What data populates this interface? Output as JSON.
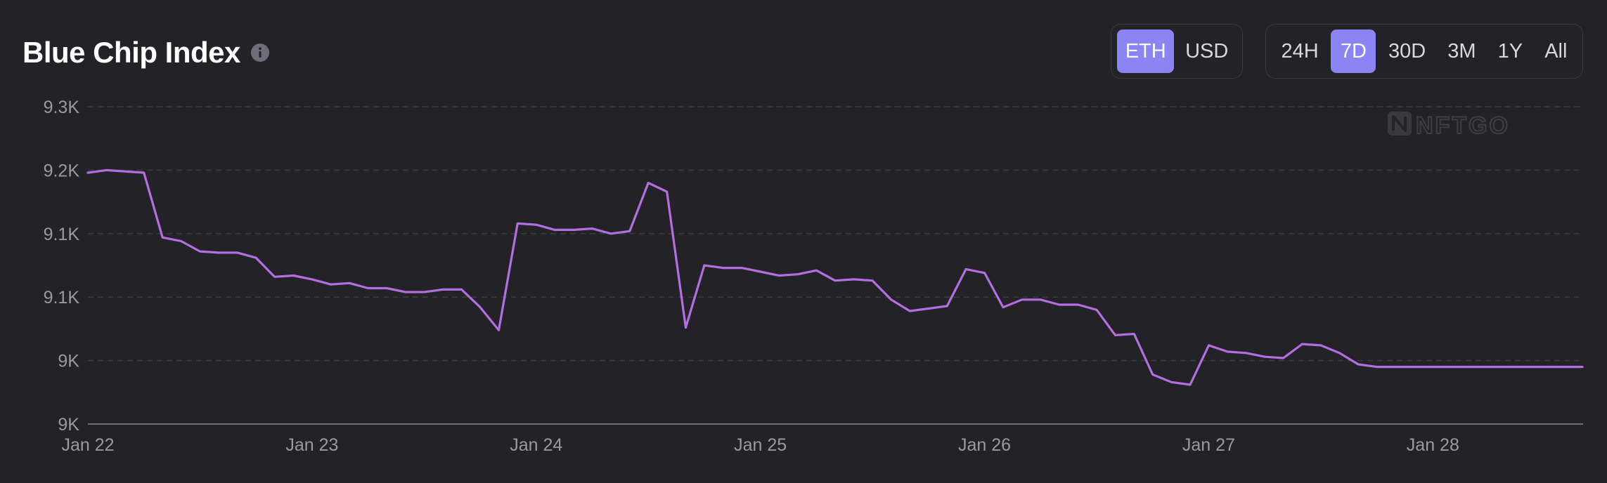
{
  "header": {
    "title": "Blue Chip Index",
    "info_icon": "info-icon"
  },
  "currency_toggle": {
    "options": [
      "ETH",
      "USD"
    ],
    "selected": "ETH"
  },
  "range_toggle": {
    "options": [
      "24H",
      "7D",
      "30D",
      "3M",
      "1Y",
      "All"
    ],
    "selected": "7D"
  },
  "colors": {
    "background": "#232227",
    "line": "#b36ee0",
    "accent": "#8a84f4",
    "grid": "#3d3c42",
    "axis_text": "#9a99a0"
  },
  "chart_data": {
    "type": "line",
    "title": "Blue Chip Index",
    "xlabel": "",
    "ylabel": "",
    "watermark": "NFTGO",
    "grid": true,
    "x_ticks": [
      "Jan 22",
      "Jan 23",
      "Jan 24",
      "Jan 25",
      "Jan 26",
      "Jan 27",
      "Jan 28"
    ],
    "y_ticks": [
      "9.3K",
      "9.2K",
      "9.1K",
      "9.1K",
      "9K",
      "9K"
    ],
    "y_tick_values": [
      9300,
      9250,
      9200,
      9150,
      9100,
      9050
    ],
    "ylim": [
      9050,
      9300
    ],
    "xlim": [
      0,
      6.67
    ],
    "x_unit": "days since Jan 22",
    "series": [
      {
        "name": "",
        "x": [
          0,
          0.083,
          0.25,
          0.333,
          0.417,
          0.5,
          0.583,
          0.667,
          0.75,
          0.833,
          0.917,
          1,
          1.083,
          1.167,
          1.25,
          1.333,
          1.417,
          1.5,
          1.583,
          1.667,
          1.75,
          1.833,
          1.917,
          2,
          2.083,
          2.167,
          2.25,
          2.333,
          2.417,
          2.5,
          2.583,
          2.667,
          2.75,
          2.833,
          2.917,
          3,
          3.083,
          3.167,
          3.25,
          3.333,
          3.417,
          3.5,
          3.583,
          3.667,
          3.75,
          3.833,
          3.917,
          4,
          4.083,
          4.167,
          4.25,
          4.333,
          4.417,
          4.5,
          4.583,
          4.667,
          4.75,
          4.833,
          4.917,
          5,
          5.083,
          5.167,
          5.25,
          5.333,
          5.417,
          5.5,
          5.583,
          5.667,
          5.75,
          5.833,
          5.917,
          6,
          6.083,
          6.167,
          6.25,
          6.333,
          6.417,
          6.5,
          6.583,
          6.667
        ],
        "values": [
          9248,
          9250,
          9248,
          9197,
          9194,
          9186,
          9185,
          9185,
          9181,
          9166,
          9167,
          9164,
          9160,
          9161,
          9157,
          9157,
          9154,
          9154,
          9156,
          9156,
          9142,
          9124,
          9208,
          9207,
          9203,
          9203,
          9204,
          9200,
          9202,
          9240,
          9233,
          9126,
          9175,
          9173,
          9173,
          9170,
          9167,
          9168,
          9171,
          9163,
          9164,
          9163,
          9148,
          9139,
          9141,
          9143,
          9172,
          9169,
          9142,
          9148,
          9148,
          9144,
          9144,
          9140,
          9120,
          9121,
          9089,
          9083,
          9081,
          9112,
          9107,
          9106,
          9103,
          9102,
          9113,
          9112,
          9106,
          9097,
          9095,
          9095,
          9095,
          9095,
          9095,
          9095,
          9095,
          9095,
          9095,
          9095,
          9095,
          9095
        ]
      }
    ]
  }
}
